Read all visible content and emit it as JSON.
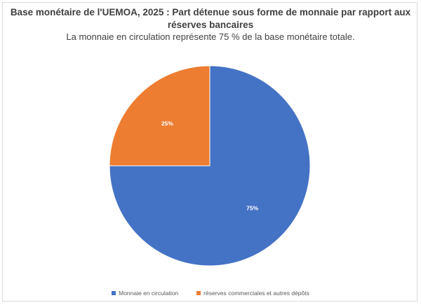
{
  "chart_data": {
    "type": "pie",
    "title": "Base monétaire de l'UEMOA, 2025 : Part détenue sous forme de monnaie par rapport aux réserves bancaires",
    "subtitle": "La monnaie en circulation représente 75 % de la base monétaire totale.",
    "categories": [
      "Monnaie en circulation",
      "réserves commerciales et autres dépôts"
    ],
    "values": [
      75,
      25
    ],
    "labels": [
      "75%",
      "25%"
    ],
    "colors": [
      "#4472c4",
      "#ed7d31"
    ],
    "legend_position": "bottom"
  }
}
